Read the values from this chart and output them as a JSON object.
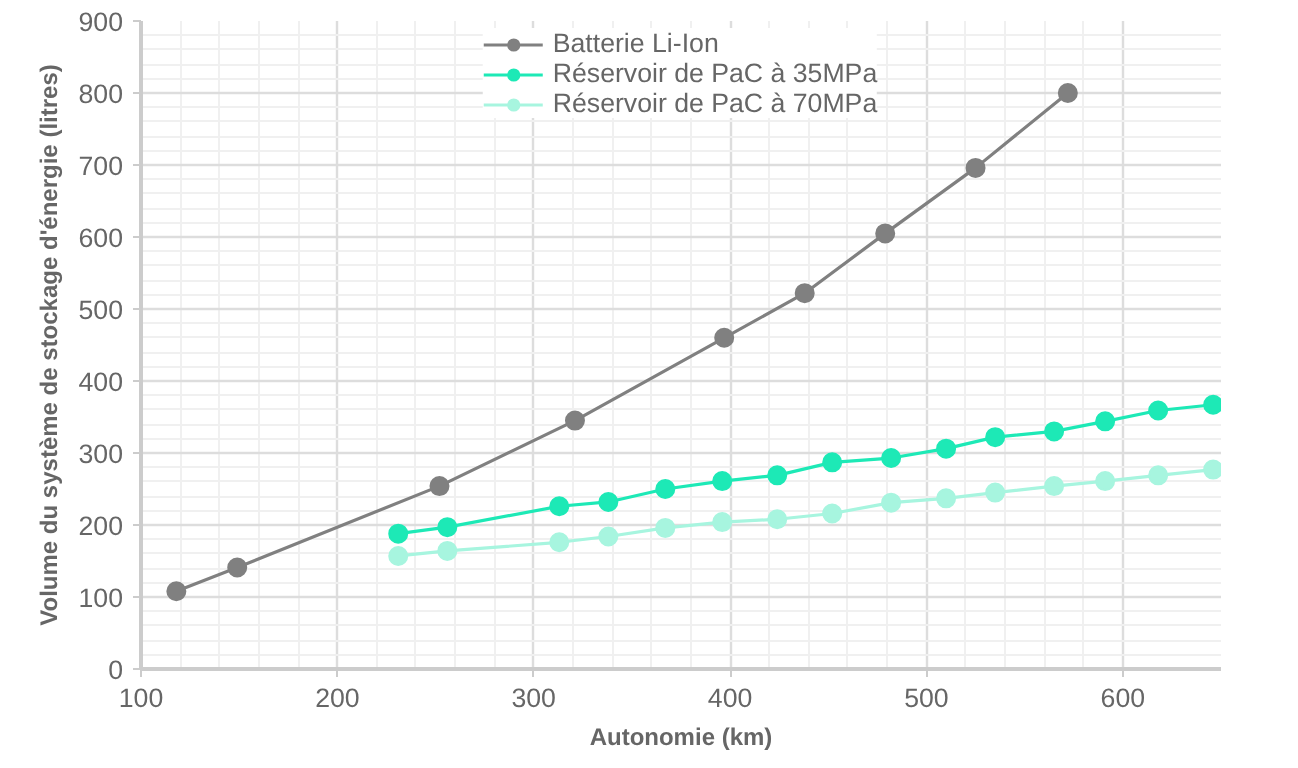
{
  "chart_data": {
    "type": "line",
    "xlabel": "Autonomie (km)",
    "ylabel": "Volume du système de stockage d'énergie (litres)",
    "xlim": [
      100,
      650
    ],
    "xticks": [
      100,
      200,
      300,
      400,
      500,
      600
    ],
    "ylim": [
      0,
      900
    ],
    "yticks": [
      0,
      100,
      200,
      300,
      400,
      500,
      600,
      700,
      800,
      900
    ],
    "grid": true,
    "legend": "top",
    "marker": "circle",
    "line_style": "solid",
    "series": [
      {
        "name": "Batterie Li-Ion",
        "color": "#808080",
        "x": [
          118,
          149,
          252,
          321,
          397,
          438,
          479,
          525,
          572
        ],
        "values": [
          108,
          141,
          254,
          345,
          460,
          522,
          605,
          696,
          800
        ]
      },
      {
        "name": "Réservoir de PaC à 35MPa",
        "color": "#1de9b6",
        "x": [
          231,
          256,
          313,
          338,
          367,
          396,
          424,
          452,
          482,
          510,
          535,
          565,
          591,
          618,
          646
        ],
        "values": [
          188,
          197,
          226,
          232,
          250,
          261,
          269,
          287,
          293,
          306,
          322,
          330,
          344,
          359,
          367
        ]
      },
      {
        "name": "Réservoir de PaC à 70MPa",
        "color": "#a7f5df",
        "x": [
          231,
          256,
          313,
          338,
          367,
          396,
          424,
          452,
          482,
          510,
          535,
          565,
          591,
          618,
          646
        ],
        "values": [
          157,
          164,
          176,
          184,
          196,
          204,
          208,
          216,
          231,
          237,
          245,
          254,
          261,
          269,
          277
        ]
      }
    ]
  }
}
